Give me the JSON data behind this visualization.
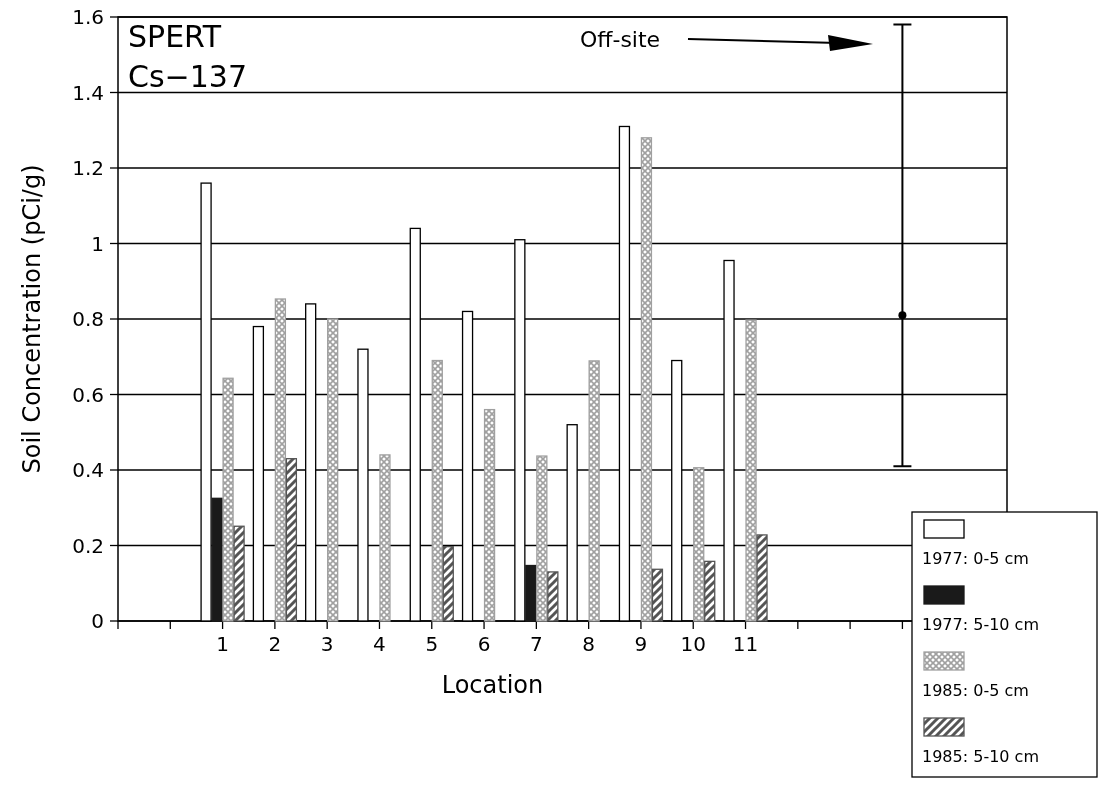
{
  "chart_data": {
    "type": "bar",
    "xlabel": "Location",
    "ylabel": "Soil Concentration (pCi/g)",
    "categories": [
      null,
      null,
      "1",
      "2",
      "3",
      "4",
      "5",
      "6",
      "7",
      "8",
      "9",
      "10",
      "11",
      null,
      null,
      null,
      null,
      null
    ],
    "series": [
      {
        "name": "1977: 0-5 cm",
        "color": "#ffffff",
        "values": [
          null,
          null,
          1.16,
          0.78,
          0.84,
          0.72,
          1.04,
          0.82,
          1.01,
          0.52,
          1.31,
          0.69,
          0.955,
          null,
          null,
          null,
          null,
          null
        ]
      },
      {
        "name": "1977: 5-10 cm",
        "color": "#1a1a1a",
        "values": [
          null,
          null,
          0.325,
          null,
          null,
          null,
          null,
          null,
          0.147,
          null,
          null,
          null,
          null,
          null,
          null,
          null,
          null,
          null
        ]
      },
      {
        "name": "1985: 0-5 cm",
        "color": "#a0a0a0",
        "values": [
          null,
          null,
          0.643,
          0.853,
          0.8,
          0.44,
          0.69,
          0.56,
          0.437,
          0.689,
          1.28,
          0.406,
          0.797,
          null,
          null,
          null,
          null,
          null
        ]
      },
      {
        "name": "1985: 5-10 cm",
        "color": "#555555",
        "values": [
          null,
          null,
          0.251,
          0.43,
          null,
          null,
          0.197,
          null,
          0.13,
          null,
          0.137,
          0.158,
          0.228,
          null,
          null,
          null,
          null,
          null
        ]
      },
      {
        "type": "scatter",
        "color": "#000000",
        "values": [
          null,
          null,
          null,
          null,
          null,
          null,
          null,
          null,
          null,
          null,
          null,
          null,
          null,
          null,
          null,
          0.81,
          null,
          null
        ],
        "errors": [
          null,
          null,
          null,
          null,
          null,
          null,
          null,
          null,
          null,
          null,
          null,
          null,
          null,
          null,
          null,
          [
            0.41,
            1.58
          ],
          null,
          null
        ]
      }
    ],
    "annotations": [
      "SPERT",
      "Cs−137",
      "Off-site"
    ],
    "ylim": [
      0,
      1.6
    ],
    "yticks": [
      0,
      0.2,
      0.4,
      0.6,
      0.8,
      1,
      1.2,
      1.4,
      1.6
    ],
    "grid": "y",
    "legend": "bottom right"
  }
}
